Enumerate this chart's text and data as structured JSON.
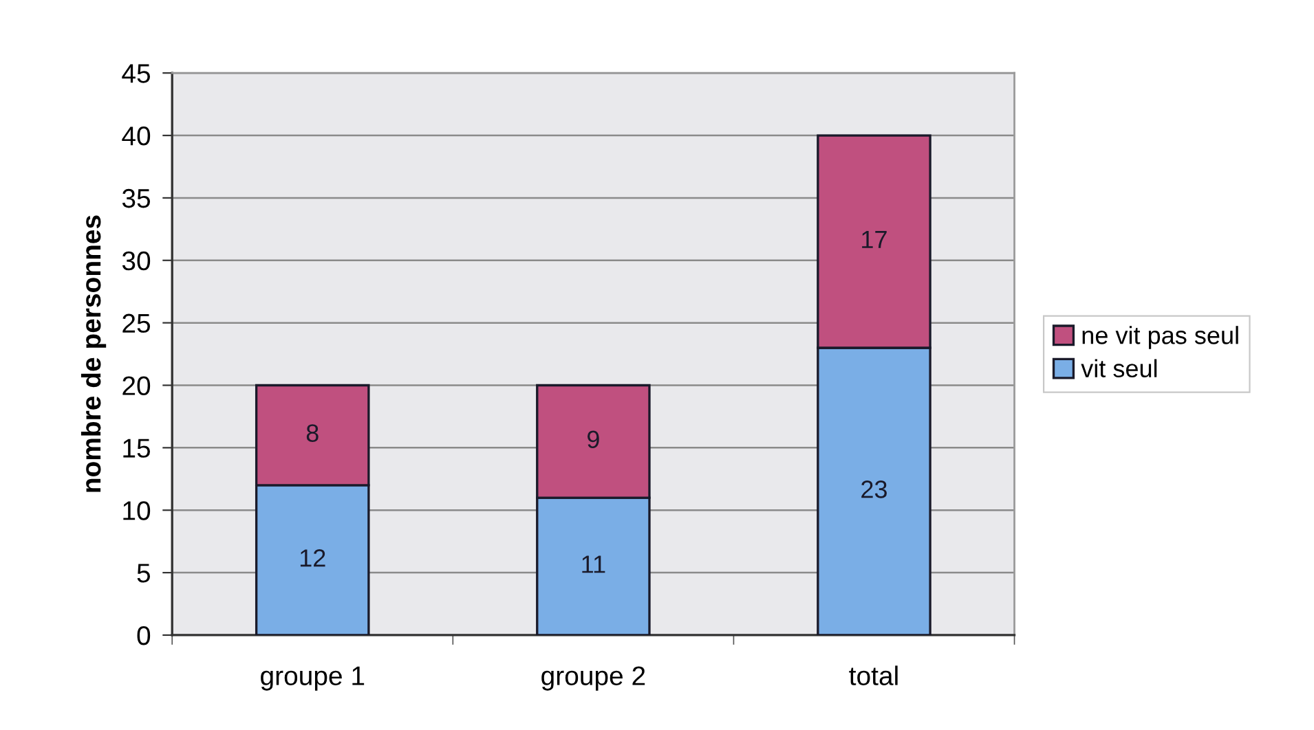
{
  "chart_data": {
    "type": "bar",
    "stacked": true,
    "ylabel": "nombre de personnes",
    "categories": [
      "groupe 1",
      "groupe 2",
      "total"
    ],
    "series": [
      {
        "name": "vit seul",
        "color": "#7aaee6",
        "values": [
          12,
          11,
          23
        ]
      },
      {
        "name": "ne vit pas seul",
        "color": "#c0507f",
        "values": [
          8,
          9,
          17
        ]
      }
    ],
    "ylim": [
      0,
      45
    ],
    "yticks": [
      0,
      5,
      10,
      15,
      20,
      25,
      30,
      35,
      40,
      45
    ],
    "grid": "y",
    "legend": "right",
    "data_labels": true
  }
}
